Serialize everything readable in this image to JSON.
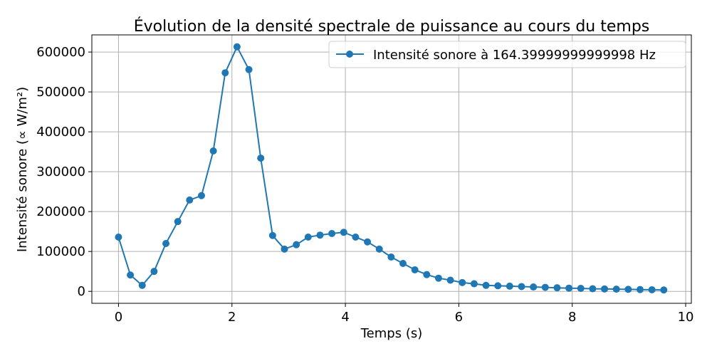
{
  "chart_data": {
    "type": "line",
    "title": "Évolution de la densité spectrale de puissance au cours du temps",
    "xlabel": "Temps (s)",
    "ylabel": "Intensité sonore (∝ W/m²)",
    "xlim": [
      -0.47,
      10.1
    ],
    "ylim": [
      -30000,
      643000
    ],
    "xticks": [
      0,
      2,
      4,
      6,
      8,
      10
    ],
    "yticks": [
      0,
      100000,
      200000,
      300000,
      400000,
      500000,
      600000
    ],
    "grid": true,
    "legend_position": "top-right",
    "series": [
      {
        "name": "Intensité sonore à 164.39999999999998 Hz",
        "color": "#1f77b4",
        "marker": "circle",
        "x": [
          0,
          0.209,
          0.418,
          0.627,
          0.836,
          1.045,
          1.254,
          1.463,
          1.672,
          1.881,
          2.09,
          2.299,
          2.508,
          2.717,
          2.926,
          3.135,
          3.344,
          3.553,
          3.762,
          3.971,
          4.18,
          4.389,
          4.598,
          4.807,
          5.016,
          5.225,
          5.434,
          5.643,
          5.852,
          6.061,
          6.27,
          6.479,
          6.688,
          6.897,
          7.106,
          7.315,
          7.524,
          7.733,
          7.942,
          8.151,
          8.36,
          8.569,
          8.778,
          8.987,
          9.196,
          9.405,
          9.614
        ],
        "y": [
          136000,
          41000,
          15000,
          50000,
          120000,
          175000,
          229000,
          240000,
          352000,
          548000,
          613000,
          556000,
          334000,
          140000,
          106000,
          117000,
          136000,
          141000,
          145000,
          148000,
          136000,
          124000,
          106000,
          86000,
          70000,
          54000,
          42000,
          33000,
          28000,
          22000,
          19000,
          15000,
          14000,
          13000,
          12000,
          11000,
          10000,
          9000,
          8000,
          7500,
          6500,
          6000,
          5500,
          5000,
          4500,
          4000,
          3500
        ]
      }
    ]
  }
}
